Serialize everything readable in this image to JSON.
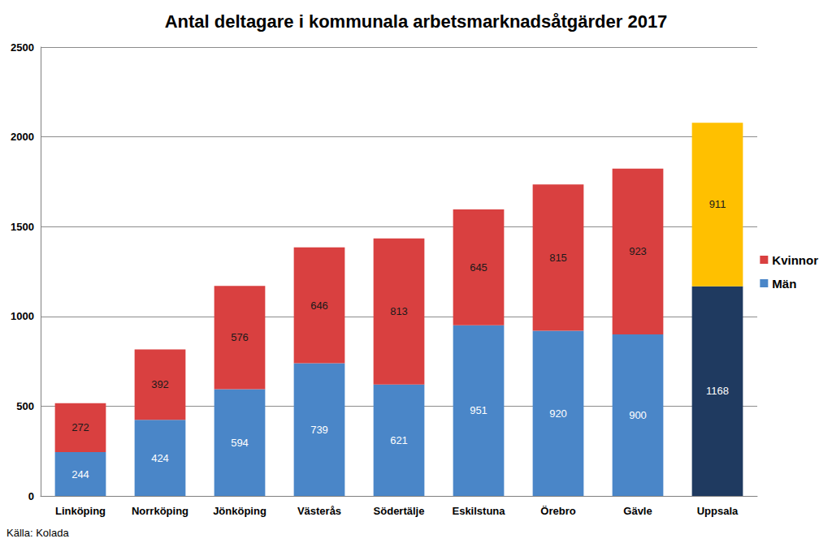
{
  "chart_data": {
    "type": "bar",
    "title": "Antal deltagare i kommunala arbetsmarknadsåtgärder 2017",
    "annotations": [
      "Källa: Kolada"
    ],
    "categories": [
      "Linköping",
      "Norrköping",
      "Jönköping",
      "Västerås",
      "Södertälje",
      "Eskilstuna",
      "Örebro",
      "Gävle",
      "Uppsala"
    ],
    "series": [
      {
        "name": "Män",
        "color": "#4a86c8",
        "colors": [
          "#4a86c8",
          "#4a86c8",
          "#4a86c8",
          "#4a86c8",
          "#4a86c8",
          "#4a86c8",
          "#4a86c8",
          "#4a86c8",
          "#1f3a60"
        ],
        "values": [
          244,
          424,
          594,
          739,
          621,
          951,
          920,
          900,
          1168
        ]
      },
      {
        "name": "Kvinnor",
        "color": "#d94040",
        "colors": [
          "#d94040",
          "#d94040",
          "#d94040",
          "#d94040",
          "#d94040",
          "#d94040",
          "#d94040",
          "#d94040",
          "#ffc000"
        ],
        "values": [
          272,
          392,
          576,
          646,
          813,
          645,
          815,
          923,
          911
        ]
      }
    ],
    "ylim": [
      0,
      2500
    ],
    "yticks": [
      0,
      500,
      1000,
      1500,
      2000,
      2500
    ],
    "grid": true,
    "stacked": true,
    "data_labels": true,
    "legend": "right"
  }
}
